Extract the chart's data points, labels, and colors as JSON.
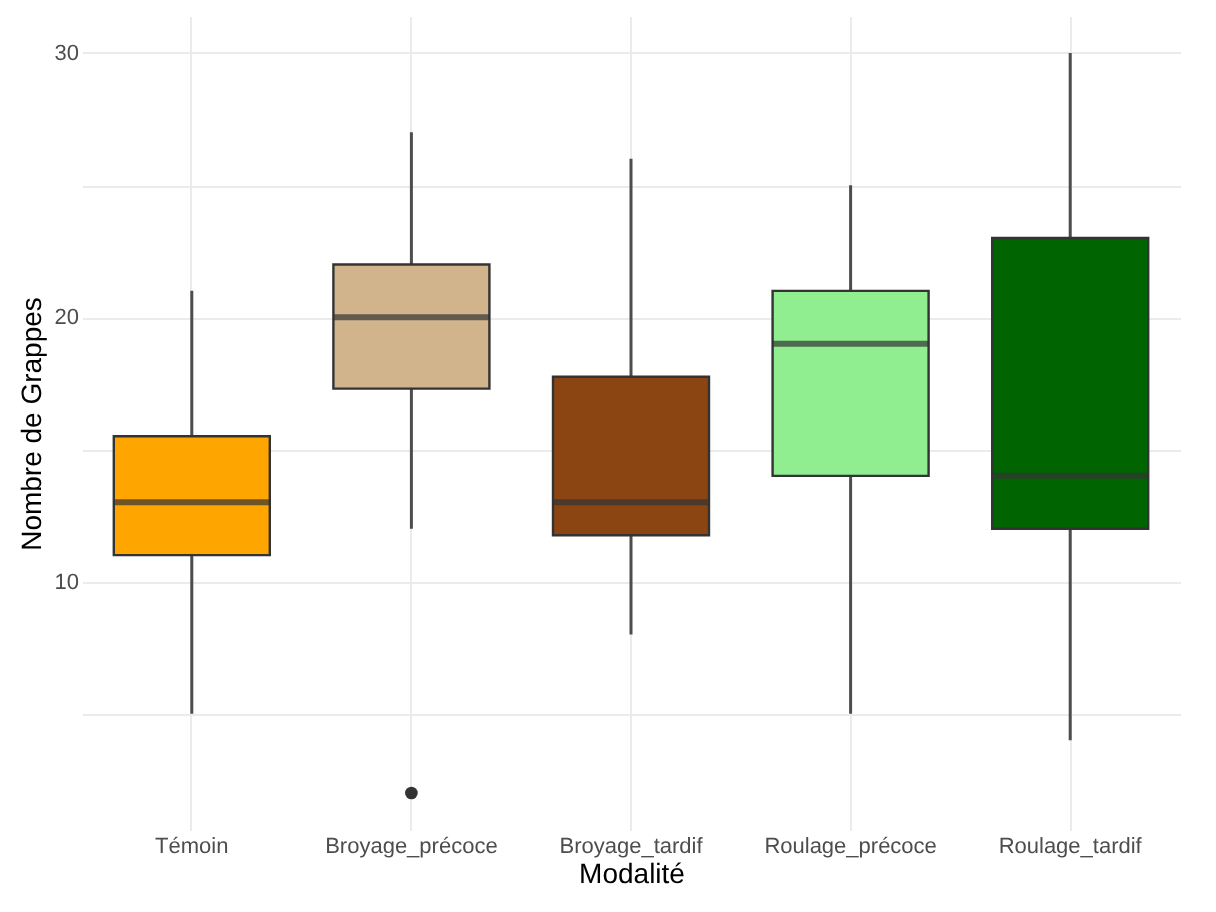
{
  "chart_data": {
    "type": "box",
    "xlabel": "Modalité",
    "ylabel": "Nombre de Grappes",
    "categories": [
      "Témoin",
      "Broyage_précoce",
      "Broyage_tardif",
      "Roulage_précoce",
      "Roulage_tardif"
    ],
    "colors": [
      "#ffa500",
      "#d2b48c",
      "#8b4513",
      "#90ee90",
      "#006400"
    ],
    "boxes": [
      {
        "low": 5,
        "q1": 11,
        "median": 13,
        "q3": 15.5,
        "high": 21
      },
      {
        "low": 12,
        "q1": 17.3,
        "median": 20,
        "q3": 22,
        "high": 27,
        "outliers": [
          2
        ]
      },
      {
        "low": 8,
        "q1": 11.75,
        "median": 13,
        "q3": 17.75,
        "high": 26
      },
      {
        "low": 5,
        "q1": 14,
        "median": 19,
        "q3": 21,
        "high": 25
      },
      {
        "low": 4,
        "q1": 12,
        "median": 14,
        "q3": 23,
        "high": 30
      }
    ],
    "ylim": [
      0.6,
      31.4
    ],
    "yticks": [
      {
        "value": 5,
        "label": null
      },
      10,
      {
        "value": 15,
        "label": null
      },
      20,
      {
        "value": 25,
        "label": null
      },
      30
    ],
    "grid": true,
    "legend": false
  }
}
